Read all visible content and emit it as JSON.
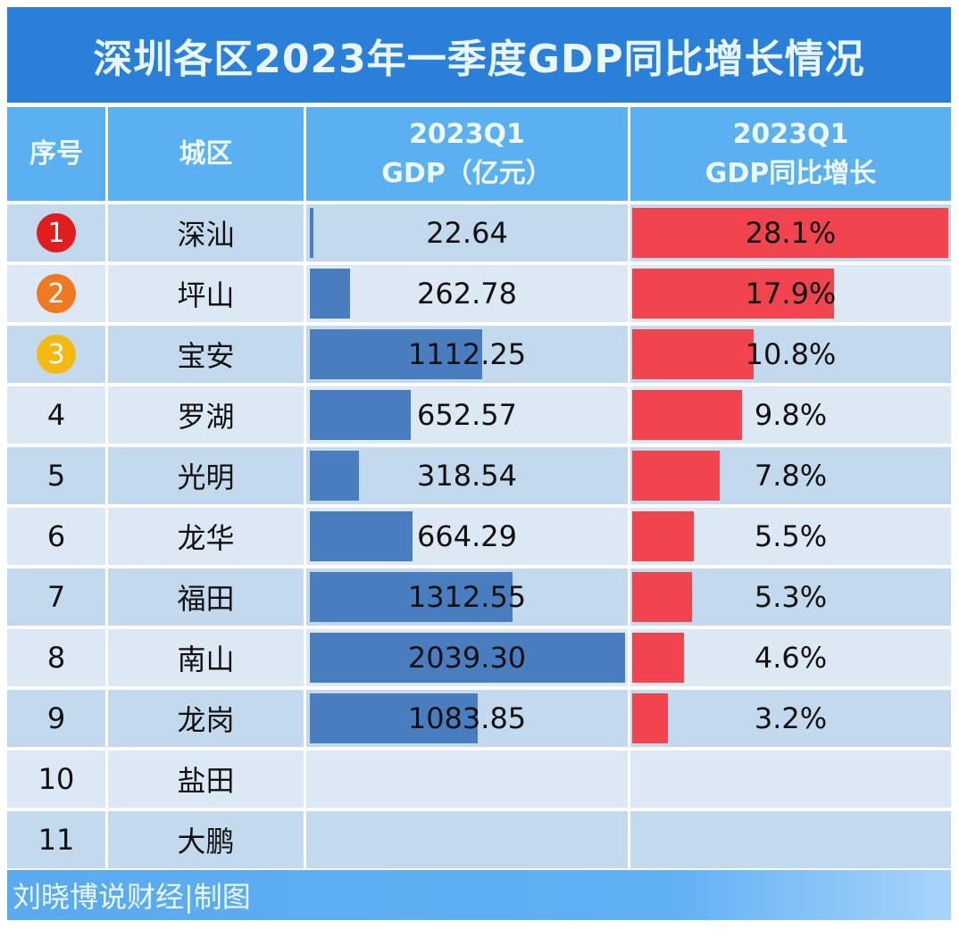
{
  "chart_data": {
    "type": "table",
    "title": "深圳各区2023年一季度GDP同比增长情况",
    "columns": [
      "序号",
      "城区",
      [
        "2023Q1",
        "GDP（亿元）"
      ],
      [
        "2023Q1",
        "GDP同比增长"
      ]
    ],
    "rows": [
      {
        "rank": "1",
        "district": "深汕",
        "gdp": 22.64,
        "gdp_label": "22.64",
        "growth": 28.1,
        "growth_label": "28.1%"
      },
      {
        "rank": "2",
        "district": "坪山",
        "gdp": 262.78,
        "gdp_label": "262.78",
        "growth": 17.9,
        "growth_label": "17.9%"
      },
      {
        "rank": "3",
        "district": "宝安",
        "gdp": 1112.25,
        "gdp_label": "1112.25",
        "growth": 10.8,
        "growth_label": "10.8%"
      },
      {
        "rank": "4",
        "district": "罗湖",
        "gdp": 652.57,
        "gdp_label": "652.57",
        "growth": 9.8,
        "growth_label": "9.8%"
      },
      {
        "rank": "5",
        "district": "光明",
        "gdp": 318.54,
        "gdp_label": "318.54",
        "growth": 7.8,
        "growth_label": "7.8%"
      },
      {
        "rank": "6",
        "district": "龙华",
        "gdp": 664.29,
        "gdp_label": "664.29",
        "growth": 5.5,
        "growth_label": "5.5%"
      },
      {
        "rank": "7",
        "district": "福田",
        "gdp": 1312.55,
        "gdp_label": "1312.55",
        "growth": 5.3,
        "growth_label": "5.3%"
      },
      {
        "rank": "8",
        "district": "南山",
        "gdp": 2039.3,
        "gdp_label": "2039.30",
        "growth": 4.6,
        "growth_label": "4.6%"
      },
      {
        "rank": "9",
        "district": "龙岗",
        "gdp": 1083.85,
        "gdp_label": "1083.85",
        "growth": 3.2,
        "growth_label": "3.2%"
      },
      {
        "rank": "10",
        "district": "盐田",
        "gdp": null,
        "gdp_label": "",
        "growth": null,
        "growth_label": ""
      },
      {
        "rank": "11",
        "district": "大鹏",
        "gdp": null,
        "gdp_label": "",
        "growth": null,
        "growth_label": ""
      }
    ],
    "gdp_max": 2039.3,
    "growth_max": 28.1
  },
  "header": {
    "col1": "序号",
    "col2": "城区",
    "col3_line1": "2023Q1",
    "col3_line2": "GDP（亿元）",
    "col4_line1": "2023Q1",
    "col4_line2": "GDP同比增长"
  },
  "footer": "刘晓博说财经|制图",
  "colors": {
    "title_bg": "#2a80d8",
    "header_bg": "#5bb0f0",
    "gdp_bar": "#4a7cc0",
    "growth_bar": "#f0454e",
    "row_dark": "#c2d9ee",
    "row_light": "#dce9f4",
    "badge": [
      "#e01e1e",
      "#f07a22",
      "#f5b914"
    ]
  }
}
